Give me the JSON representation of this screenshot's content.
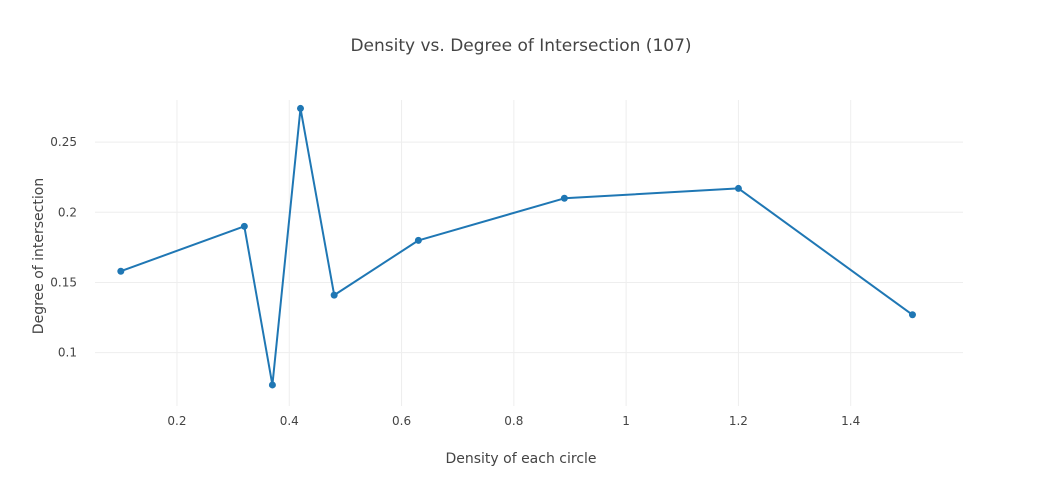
{
  "chart_data": {
    "type": "line",
    "title": "Density vs. Degree of Intersection (107)",
    "xlabel": "Density of each circle",
    "ylabel": "Degree of intersection",
    "xlim": [
      0.054,
      1.6
    ],
    "ylim": [
      0.062,
      0.28
    ],
    "x_ticks": [
      0.2,
      0.4,
      0.6,
      0.8,
      1,
      1.2,
      1.4
    ],
    "x_tick_labels": [
      "0.2",
      "0.4",
      "0.6",
      "0.8",
      "1",
      "1.2",
      "1.4"
    ],
    "y_ticks": [
      0.1,
      0.15,
      0.2,
      0.25
    ],
    "y_tick_labels": [
      "0.1",
      "0.15",
      "0.2",
      "0.25"
    ],
    "grid": true,
    "series": [
      {
        "color": "#1f77b4",
        "x": [
          0.1,
          0.32,
          0.37,
          0.42,
          0.48,
          0.63,
          0.89,
          1.2,
          1.51
        ],
        "y": [
          0.158,
          0.19,
          0.077,
          0.274,
          0.141,
          0.18,
          0.21,
          0.217,
          0.127
        ]
      }
    ]
  }
}
